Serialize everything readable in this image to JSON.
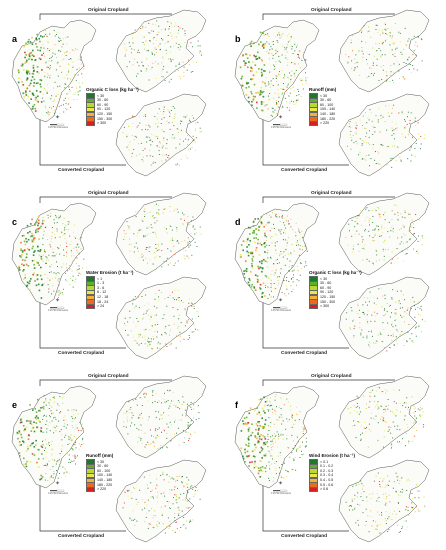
{
  "common": {
    "top_label": "Original Cropland",
    "bottom_label": "Converted Cropland",
    "scale_text": "0  25  50 Kilometers",
    "north_symbol": "✦"
  },
  "panels": [
    {
      "letter": "a",
      "legend_title": "Organic C loss (kg ha⁻¹)",
      "classes": [
        "< 30",
        "30 - 60",
        "60 - 90",
        "90 - 120",
        "120 - 150",
        "150 - 300",
        "> 300"
      ],
      "colors": [
        "#1a7a2a",
        "#5fae2e",
        "#b9d832",
        "#e8e64a",
        "#f4b23a",
        "#ea6a22",
        "#d61f1f"
      ]
    },
    {
      "letter": "b",
      "legend_title": "Runoff (mm)",
      "classes": [
        "< 30",
        "30 - 60",
        "60 - 100",
        "100 - 140",
        "140 - 180",
        "180 - 220",
        "> 220"
      ],
      "colors": [
        "#1a7a2a",
        "#5fae2e",
        "#b9d832",
        "#e8e64a",
        "#f4b23a",
        "#ea6a22",
        "#d61f1f"
      ]
    },
    {
      "letter": "c",
      "legend_title": "Water Erosion (t ha⁻¹)",
      "classes": [
        "< 1",
        "1 - 3",
        "3 - 6",
        "6 - 12",
        "12 - 18",
        "18 - 24",
        "> 24"
      ],
      "colors": [
        "#1a7a2a",
        "#5fae2e",
        "#b9d832",
        "#e8e64a",
        "#f4b23a",
        "#ea6a22",
        "#d61f1f"
      ]
    },
    {
      "letter": "d",
      "legend_title": "Organic C loss (kg ha⁻¹)",
      "classes": [
        "< 30",
        "30 - 60",
        "60 - 90",
        "90 - 120",
        "120 - 150",
        "150 - 300",
        "> 300"
      ],
      "colors": [
        "#1a7a2a",
        "#5fae2e",
        "#b9d832",
        "#e8e64a",
        "#f4b23a",
        "#ea6a22",
        "#d61f1f"
      ]
    },
    {
      "letter": "e",
      "legend_title": "Runoff (mm)",
      "classes": [
        "< 30",
        "30 - 60",
        "60 - 100",
        "100 - 140",
        "140 - 180",
        "180 - 220",
        "> 220"
      ],
      "colors": [
        "#1a7a2a",
        "#5fae2e",
        "#b9d832",
        "#e8e64a",
        "#f4b23a",
        "#ea6a22",
        "#d61f1f"
      ]
    },
    {
      "letter": "f",
      "legend_title": "Wind Erosion (t ha⁻¹)",
      "classes": [
        "< 0.1",
        "0.1 - 0.2",
        "0.2 - 0.3",
        "0.3 - 0.4",
        "0.4 - 0.5",
        "0.5 - 0.6",
        "> 0.6"
      ],
      "colors": [
        "#1a7a2a",
        "#5fae2e",
        "#b9d832",
        "#e8e64a",
        "#f4b23a",
        "#ea6a22",
        "#d61f1f"
      ]
    }
  ]
}
